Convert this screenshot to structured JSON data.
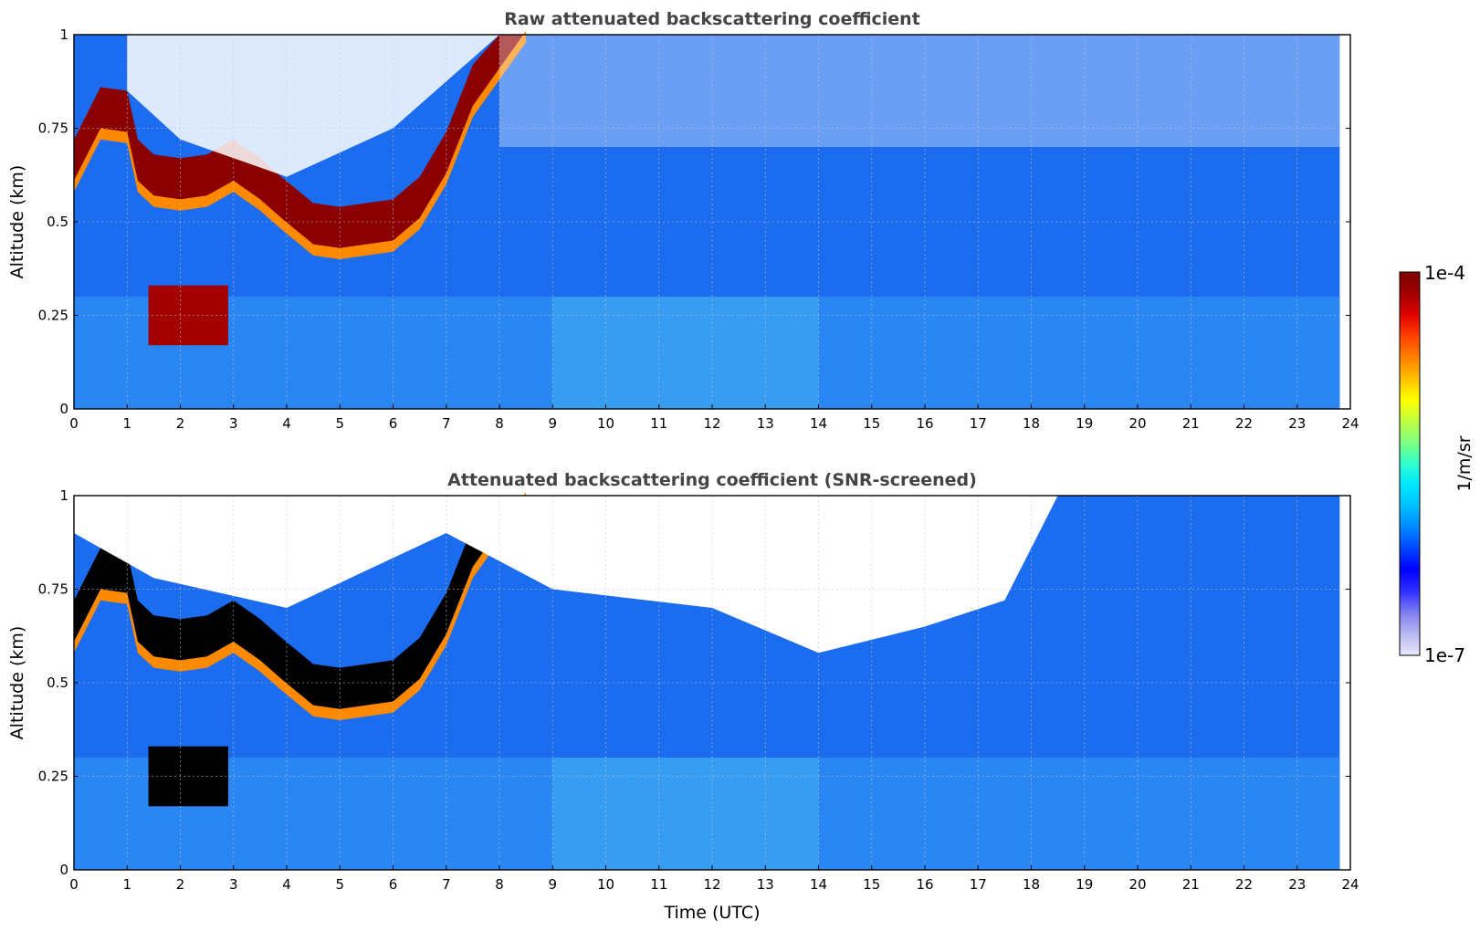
{
  "chart_data": [
    {
      "type": "heatmap",
      "title": "Raw attenuated backscattering coefficient",
      "xlabel": "",
      "ylabel": "Altitude (km)",
      "xlim": [
        0,
        24
      ],
      "ylim": [
        0,
        1
      ],
      "x_ticks": [
        "0",
        "1",
        "2",
        "3",
        "4",
        "5",
        "6",
        "7",
        "8",
        "9",
        "10",
        "11",
        "12",
        "13",
        "14",
        "15",
        "16",
        "17",
        "18",
        "19",
        "20",
        "21",
        "22",
        "23",
        "24"
      ],
      "y_ticks": [
        "0",
        "0.25",
        "0.5",
        "0.75",
        "1"
      ],
      "grid": true,
      "data_end_hour": 23.8,
      "colormap": "jet",
      "cloud_base_km": [
        [
          0,
          0.6
        ],
        [
          0.5,
          0.74
        ],
        [
          1,
          0.73
        ],
        [
          1.2,
          0.6
        ],
        [
          1.5,
          0.56
        ],
        [
          2,
          0.55
        ],
        [
          2.5,
          0.56
        ],
        [
          3,
          0.6
        ],
        [
          3.5,
          0.55
        ],
        [
          3.9,
          0.5
        ],
        [
          4.5,
          0.43
        ],
        [
          5,
          0.42
        ],
        [
          6,
          0.44
        ],
        [
          6.5,
          0.5
        ],
        [
          7,
          0.62
        ],
        [
          7.5,
          0.8
        ],
        [
          8,
          0.9
        ],
        [
          8.5,
          1.0
        ]
      ],
      "low_cloud": {
        "x_range": [
          1.4,
          2.9
        ],
        "y_range_km": [
          0.17,
          0.33
        ]
      },
      "background_level": "low"
    },
    {
      "type": "heatmap",
      "title": "Attenuated backscattering coefficient (SNR-screened)",
      "xlabel": "Time (UTC)",
      "ylabel": "Altitude (km)",
      "xlim": [
        0,
        24
      ],
      "ylim": [
        0,
        1
      ],
      "x_ticks": [
        "0",
        "1",
        "2",
        "3",
        "4",
        "5",
        "6",
        "7",
        "8",
        "9",
        "10",
        "11",
        "12",
        "13",
        "14",
        "15",
        "16",
        "17",
        "18",
        "19",
        "20",
        "21",
        "22",
        "23",
        "24"
      ],
      "y_ticks": [
        "0",
        "0.25",
        "0.5",
        "0.75",
        "1"
      ],
      "grid": true,
      "data_end_hour": 23.8,
      "colormap": "jet",
      "saturated_color": "#000000",
      "screened_color": "#ffffff"
    }
  ],
  "colorbar": {
    "label": "1/m/sr",
    "max_label": "1e-4",
    "min_label": "1e-7",
    "colors": [
      "#e8e8fb",
      "#b8b8f0",
      "#7f7ff0",
      "#3030ff",
      "#0000ff",
      "#0044ff",
      "#0088ff",
      "#00c0ff",
      "#00e6ff",
      "#30ffd0",
      "#80ff80",
      "#c0ff40",
      "#ffff00",
      "#ffc000",
      "#ff8000",
      "#ff4000",
      "#e00000",
      "#a00000",
      "#800000"
    ]
  }
}
